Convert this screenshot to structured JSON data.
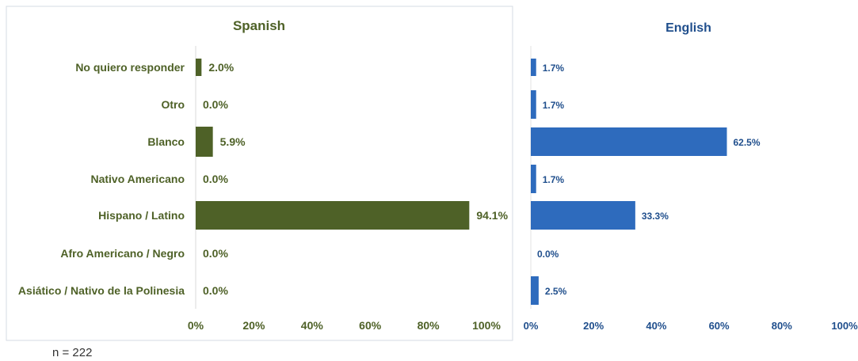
{
  "chart_data": [
    {
      "type": "bar",
      "orientation": "horizontal",
      "title": "Spanish",
      "categories": [
        "No quiero responder",
        "Otro",
        "Blanco",
        "Nativo Americano",
        "Hispano / Latino",
        "Afro Americano / Negro",
        "Asiático / Nativo de la Polinesia"
      ],
      "values": [
        2.0,
        0.0,
        5.9,
        0.0,
        94.1,
        0.0,
        0.0
      ],
      "value_labels": [
        "2.0%",
        "0.0%",
        "5.9%",
        "0.0%",
        "94.1%",
        "0.0%",
        "0.0%"
      ],
      "xticks": [
        "0%",
        "20%",
        "40%",
        "60%",
        "80%",
        "100%"
      ],
      "xlim": [
        0,
        100
      ],
      "color": "#4e6127",
      "title_color": "#4e6127"
    },
    {
      "type": "bar",
      "orientation": "horizontal",
      "title": "English",
      "values": [
        1.7,
        1.7,
        62.5,
        1.7,
        33.3,
        0.0,
        2.5
      ],
      "value_labels": [
        "1.7%",
        "1.7%",
        "62.5%",
        "1.7%",
        "33.3%",
        "0.0%",
        "2.5%"
      ],
      "xticks": [
        "0%",
        "20%",
        "40%",
        "60%",
        "80%",
        "100%"
      ],
      "xlim": [
        0,
        100
      ],
      "color": "#2e6bbd",
      "title_color": "#1f4e8c"
    }
  ],
  "footnote": "n = 222"
}
